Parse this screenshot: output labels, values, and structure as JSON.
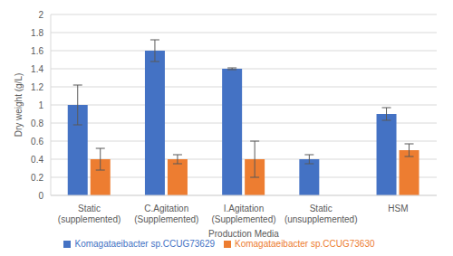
{
  "chart_data": {
    "type": "bar",
    "x_label": "Production Media",
    "y_label": "Dry weight (g/L)",
    "categories": [
      "Static (supplemented)",
      "C.Agitation (Supplemented)",
      "I.Agitation (Supplemented)",
      "Static (unsupplemented)",
      "HSM"
    ],
    "series": [
      {
        "name": "Komagataeibacter sp.CCUG73629",
        "color": "#4472c4",
        "values": [
          1.0,
          1.6,
          1.4,
          0.4,
          0.9
        ],
        "errors": [
          0.22,
          0.12,
          0.01,
          0.05,
          0.07
        ]
      },
      {
        "name": "Komagataeibacter sp.CCUG73630",
        "color": "#ed7d31",
        "values": [
          0.4,
          0.4,
          0.4,
          null,
          0.5
        ],
        "errors": [
          0.12,
          0.05,
          0.2,
          null,
          0.07
        ]
      }
    ],
    "ylim": [
      0,
      2
    ],
    "yticks": [
      0,
      0.2,
      0.4,
      0.6,
      0.8,
      1,
      1.2,
      1.4,
      1.6,
      1.8,
      2
    ],
    "grid": true,
    "legend": "bottom"
  }
}
